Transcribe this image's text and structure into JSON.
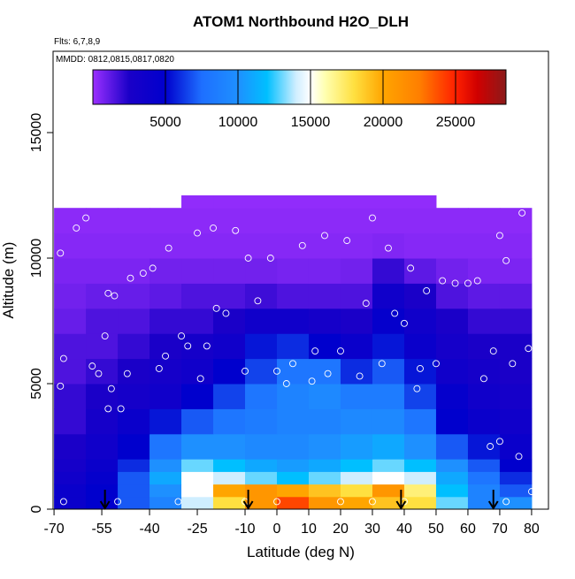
{
  "chart_data": {
    "type": "heatmap",
    "title": "ATOM1 Northbound H2O_DLH",
    "annotations": [
      "Flts: 6,7,8,9",
      "MMDD: 0812,0815,0817,0820"
    ],
    "xlabel": "Latitude (deg N)",
    "ylabel": "Altitude (m)",
    "xlim": [
      -70.3,
      85.3
    ],
    "ylim": [
      0,
      18240
    ],
    "xticks": [
      -70,
      -55,
      -40,
      -25,
      -10,
      0,
      10,
      20,
      30,
      40,
      50,
      60,
      70,
      80
    ],
    "yticks": [
      0,
      5000,
      10000,
      15000
    ],
    "x_bins": [
      -70,
      -60,
      -50,
      -40,
      -30,
      -20,
      -10,
      0,
      10,
      20,
      30,
      40,
      50,
      60,
      70,
      80
    ],
    "y_bins": [
      0,
      500,
      1000,
      1500,
      2000,
      3000,
      4000,
      5000,
      6000,
      7000,
      8000,
      9000,
      10000,
      11000,
      12000,
      12500
    ],
    "z": [
      [
        4000,
        5000,
        7000,
        9000,
        14000,
        18000,
        21000,
        24000,
        21000,
        20000,
        19000,
        18000,
        13000,
        9000,
        10000
      ],
      [
        4000,
        5000,
        7000,
        10000,
        15000,
        20000,
        21000,
        20000,
        19000,
        18000,
        21000,
        17000,
        12000,
        9000,
        7000
      ],
      [
        3500,
        4500,
        7000,
        11000,
        15000,
        14000,
        13000,
        12000,
        13000,
        14000,
        15000,
        14000,
        11000,
        8000,
        6000
      ],
      [
        3000,
        4000,
        6000,
        10000,
        13000,
        12000,
        11000,
        10500,
        11000,
        12000,
        13000,
        12000,
        10000,
        7000,
        5000
      ],
      [
        2500,
        3500,
        5000,
        8000,
        10000,
        10000,
        9500,
        9500,
        10000,
        10500,
        11000,
        10000,
        7000,
        5500,
        4000
      ],
      [
        2000,
        3000,
        4000,
        5500,
        7000,
        8000,
        8500,
        9000,
        9000,
        9500,
        9500,
        8000,
        5000,
        4000,
        3500
      ],
      [
        2000,
        2500,
        3000,
        3500,
        5000,
        6500,
        8000,
        9000,
        9500,
        8500,
        8500,
        6500,
        4500,
        3500,
        3000
      ],
      [
        1500,
        2000,
        2500,
        3000,
        3500,
        5000,
        6500,
        8000,
        8000,
        6000,
        7000,
        5500,
        3500,
        3000,
        2500
      ],
      [
        1500,
        1500,
        2000,
        2500,
        3000,
        3500,
        5500,
        6000,
        5000,
        4000,
        5500,
        4000,
        3000,
        2500,
        2500
      ],
      [
        1000,
        1500,
        1500,
        2000,
        2000,
        2500,
        3500,
        3500,
        3000,
        2500,
        4500,
        3500,
        2500,
        2000,
        2000
      ],
      [
        800,
        1000,
        1000,
        1200,
        1500,
        1500,
        1800,
        1500,
        1500,
        1500,
        3500,
        2500,
        1500,
        1200,
        1200
      ],
      [
        600,
        600,
        600,
        800,
        800,
        800,
        800,
        700,
        700,
        800,
        2000,
        1200,
        800,
        600,
        600
      ],
      [
        400,
        400,
        400,
        400,
        400,
        400,
        400,
        400,
        400,
        400,
        500,
        400,
        400,
        400,
        400
      ],
      [
        300,
        300,
        300,
        300,
        300,
        300,
        300,
        300,
        300,
        300,
        300,
        300,
        300,
        300,
        300
      ],
      [
        null,
        null,
        null,
        null,
        200,
        200,
        200,
        200,
        200,
        200,
        200,
        200,
        null,
        null,
        null
      ]
    ],
    "clim": [
      0,
      28476
    ],
    "cticks": [
      5000,
      10000,
      15000,
      20000,
      25000
    ],
    "colorscale": [
      [
        0,
        "#9b30ff"
      ],
      [
        2500,
        "#1a00c8"
      ],
      [
        5000,
        "#0000cd"
      ],
      [
        7500,
        "#1e6fff"
      ],
      [
        10000,
        "#1e90ff"
      ],
      [
        12000,
        "#00bfff"
      ],
      [
        14000,
        "#cfeeff"
      ],
      [
        15000,
        "#ffffff"
      ],
      [
        16000,
        "#ffffb0"
      ],
      [
        18000,
        "#ffe040"
      ],
      [
        20000,
        "#ffa500"
      ],
      [
        22500,
        "#ff7f00"
      ],
      [
        25000,
        "#ff2000"
      ],
      [
        26500,
        "#d00000"
      ],
      [
        28476,
        "#8b1a1a"
      ]
    ],
    "points": {
      "x": [
        -68,
        -67,
        -68,
        -67,
        -63,
        -60,
        -58,
        -56,
        -53,
        -51,
        -54,
        -52,
        -53,
        -49,
        -47,
        -46,
        -42,
        -39,
        -37,
        -35,
        -34,
        -30,
        -28,
        -25,
        -24,
        -22,
        -20,
        -19,
        -16,
        -13,
        -10,
        -9,
        -6,
        -2,
        0,
        3,
        5,
        8,
        11,
        12,
        15,
        16,
        20,
        22,
        26,
        28,
        30,
        33,
        35,
        37,
        40,
        42,
        44,
        45,
        47,
        50,
        52,
        56,
        60,
        63,
        65,
        67,
        68,
        70,
        70,
        72,
        74,
        76,
        77,
        79,
        80,
        0,
        -50,
        -31,
        20,
        40,
        72,
        -10,
        30
      ],
      "y": [
        10200,
        6000,
        4900,
        300,
        11200,
        11600,
        5700,
        5400,
        8600,
        8500,
        6900,
        4800,
        4000,
        4000,
        5400,
        9200,
        9400,
        9600,
        5600,
        6100,
        10400,
        6900,
        6500,
        11000,
        5200,
        6500,
        11200,
        8000,
        7800,
        11100,
        5500,
        10000,
        8300,
        10000,
        5500,
        5000,
        5800,
        10500,
        5100,
        6300,
        10900,
        5400,
        6300,
        10700,
        5300,
        8200,
        11600,
        5800,
        10400,
        7800,
        7400,
        9600,
        4800,
        5600,
        8700,
        5800,
        9100,
        9000,
        9000,
        9100,
        5200,
        2500,
        6300,
        2700,
        10900,
        9900,
        5800,
        2100,
        11800,
        6400,
        700,
        300,
        300,
        300,
        300,
        300,
        300,
        300,
        300
      ]
    },
    "arrows_x": [
      -54,
      -9,
      39,
      68
    ]
  }
}
